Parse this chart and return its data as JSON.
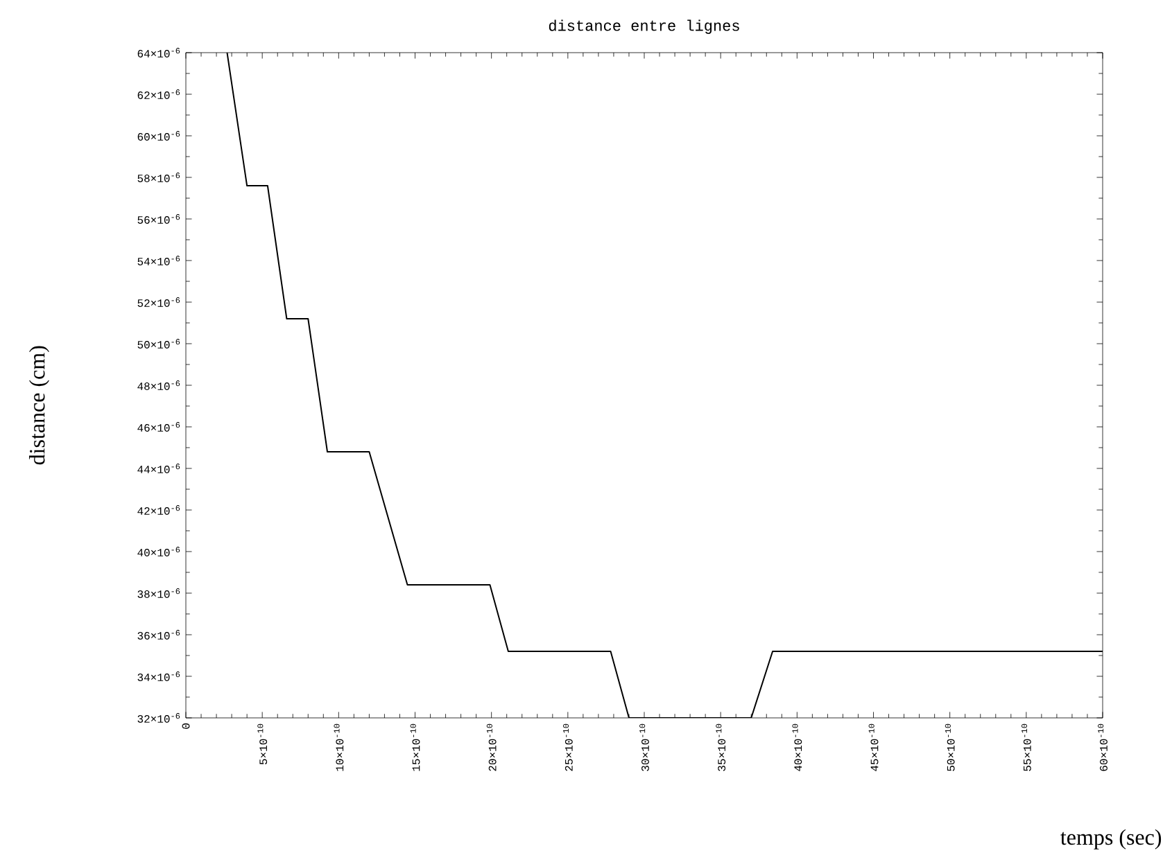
{
  "chart_data": {
    "type": "line",
    "title": "distance entre lignes",
    "xlabel": "temps (sec)",
    "ylabel": "distance (cm)",
    "x": [
      2.7e-10,
      4e-10,
      5.35e-10,
      6.6e-10,
      8e-10,
      9.26e-10,
      1.2e-09,
      1.45e-09,
      1.99e-09,
      2.11e-09,
      2.78e-09,
      2.9e-09,
      3.7e-09,
      3.84e-09,
      6e-09
    ],
    "values": [
      6.4e-05,
      5.76e-05,
      5.76e-05,
      5.12e-05,
      5.12e-05,
      4.48e-05,
      4.48e-05,
      3.84e-05,
      3.84e-05,
      3.52e-05,
      3.52e-05,
      3.2e-05,
      3.2e-05,
      3.52e-05,
      3.52e-05
    ],
    "color": "#000000",
    "xlim": [
      0,
      6e-09
    ],
    "ylim": [
      3.2e-05,
      6.4e-05
    ],
    "xticks": [
      {
        "value": 0,
        "label": "0"
      },
      {
        "value": 5e-10,
        "label": "5×10$^{-10}$"
      },
      {
        "value": 1e-09,
        "label": "10×10$^{-10}$"
      },
      {
        "value": 1.5e-09,
        "label": "15×10$^{-10}$"
      },
      {
        "value": 2e-09,
        "label": "20×10$^{-10}$"
      },
      {
        "value": 2.5e-09,
        "label": "25×10$^{-10}$"
      },
      {
        "value": 3e-09,
        "label": "30×10$^{-10}$"
      },
      {
        "value": 3.5e-09,
        "label": "35×10$^{-10}$"
      },
      {
        "value": 4e-09,
        "label": "40×10$^{-10}$"
      },
      {
        "value": 4.5e-09,
        "label": "45×10$^{-10}$"
      },
      {
        "value": 5e-09,
        "label": "50×10$^{-10}$"
      },
      {
        "value": 5.5e-09,
        "label": "55×10$^{-10}$"
      },
      {
        "value": 6e-09,
        "label": "60×10$^{-10}$"
      }
    ],
    "yticks": [
      {
        "value": 3.2e-05,
        "label": "32×10$^{-6}$"
      },
      {
        "value": 3.4e-05,
        "label": "34×10$^{-6}$"
      },
      {
        "value": 3.6e-05,
        "label": "36×10$^{-6}$"
      },
      {
        "value": 3.8e-05,
        "label": "38×10$^{-6}$"
      },
      {
        "value": 4e-05,
        "label": "40×10$^{-6}$"
      },
      {
        "value": 4.2e-05,
        "label": "42×10$^{-6}$"
      },
      {
        "value": 4.4e-05,
        "label": "44×10$^{-6}$"
      },
      {
        "value": 4.6e-05,
        "label": "46×10$^{-6}$"
      },
      {
        "value": 4.8e-05,
        "label": "48×10$^{-6}$"
      },
      {
        "value": 5e-05,
        "label": "50×10$^{-6}$"
      },
      {
        "value": 5.2e-05,
        "label": "52×10$^{-6}$"
      },
      {
        "value": 5.4e-05,
        "label": "54×10$^{-6}$"
      },
      {
        "value": 5.6e-05,
        "label": "56×10$^{-6}$"
      },
      {
        "value": 5.8e-05,
        "label": "58×10$^{-6}$"
      },
      {
        "value": 6e-05,
        "label": "60×10$^{-6}$"
      },
      {
        "value": 6.2e-05,
        "label": "62×10$^{-6}$"
      },
      {
        "value": 6.4e-05,
        "label": "64×10$^{-6}$"
      }
    ]
  }
}
